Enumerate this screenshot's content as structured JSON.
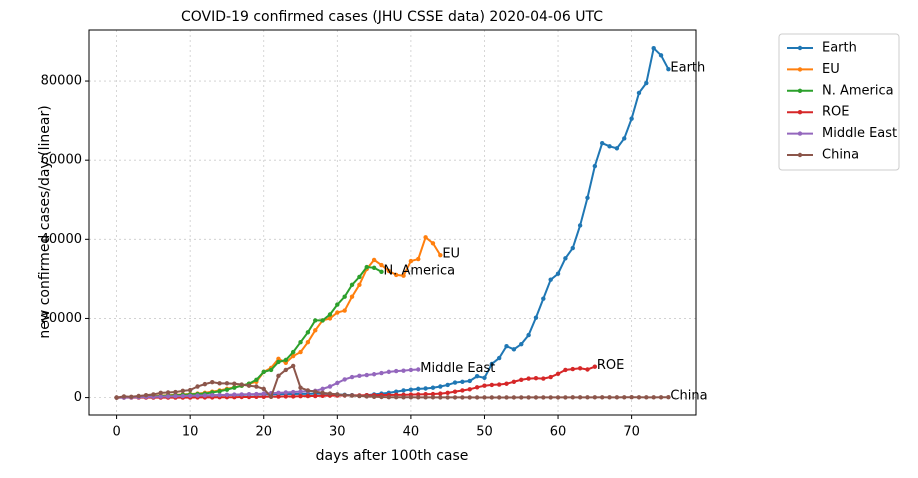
{
  "chart_data": {
    "type": "line",
    "title": "COVID-19 confirmed cases (JHU CSSE data) 2020-04-06 UTC",
    "x_label": "days after 100th case",
    "y_label": "new confirmed cases/day (linear)",
    "xlim": [
      -3.75,
      78.75
    ],
    "xticks": [
      0,
      10,
      20,
      30,
      40,
      50,
      60,
      70
    ],
    "ylim": [
      -4400,
      92900
    ],
    "yticks": [
      0,
      20000,
      40000,
      60000,
      80000
    ],
    "grid": true,
    "legend": "outside-upper-right",
    "series": [
      {
        "name": "Earth",
        "color": "#1f77b4",
        "x": [
          0,
          1,
          2,
          3,
          4,
          5,
          6,
          7,
          8,
          9,
          10,
          11,
          12,
          13,
          14,
          15,
          16,
          17,
          18,
          19,
          20,
          21,
          22,
          23,
          24,
          25,
          26,
          27,
          28,
          29,
          30,
          31,
          32,
          33,
          34,
          35,
          36,
          37,
          38,
          39,
          40,
          41,
          42,
          43,
          44,
          45,
          46,
          47,
          48,
          49,
          50,
          51,
          52,
          53,
          54,
          55,
          56,
          57,
          58,
          59,
          60,
          61,
          62,
          63,
          64,
          65,
          66,
          67,
          68,
          69,
          70,
          71,
          72,
          73,
          74,
          75
        ],
        "values": [
          0,
          50,
          100,
          150,
          200,
          250,
          300,
          350,
          400,
          450,
          500,
          500,
          550,
          600,
          600,
          650,
          700,
          700,
          750,
          800,
          800,
          850,
          850,
          900,
          900,
          950,
          950,
          1000,
          1000,
          900,
          800,
          700,
          600,
          500,
          600,
          800,
          1000,
          1200,
          1500,
          1800,
          2000,
          2200,
          2300,
          2500,
          2800,
          3200,
          3800,
          4000,
          4200,
          5400,
          5000,
          8500,
          10000,
          13000,
          12200,
          13500,
          15800,
          20200,
          25000,
          29800,
          31300,
          35200,
          37800,
          43500,
          50500,
          58500,
          64300,
          63500,
          63000,
          65500,
          70500,
          77000,
          79500,
          88300,
          86500,
          83000
        ]
      },
      {
        "name": "EU",
        "color": "#ff7f0e",
        "x": [
          0,
          1,
          2,
          3,
          4,
          5,
          6,
          7,
          8,
          9,
          10,
          11,
          12,
          13,
          14,
          15,
          16,
          17,
          18,
          19,
          20,
          21,
          22,
          23,
          24,
          25,
          26,
          27,
          28,
          29,
          30,
          31,
          32,
          33,
          34,
          35,
          36,
          37,
          38,
          39,
          40,
          41,
          42,
          43,
          44
        ],
        "values": [
          0,
          50,
          100,
          200,
          300,
          400,
          500,
          600,
          700,
          800,
          900,
          1000,
          1200,
          1500,
          1800,
          2200,
          2600,
          3000,
          3500,
          4000,
          6500,
          7500,
          9800,
          8800,
          10500,
          11500,
          14000,
          17000,
          19500,
          20000,
          21500,
          22000,
          25500,
          28500,
          32500,
          34800,
          33500,
          32000,
          31000,
          30800,
          34500,
          35000,
          40500,
          39000,
          36000
        ]
      },
      {
        "name": "N. America",
        "color": "#2ca02c",
        "x": [
          0,
          1,
          2,
          3,
          4,
          5,
          6,
          7,
          8,
          9,
          10,
          11,
          12,
          13,
          14,
          15,
          16,
          17,
          18,
          19,
          20,
          21,
          22,
          23,
          24,
          25,
          26,
          27,
          28,
          29,
          30,
          31,
          32,
          33,
          34,
          35,
          36
        ],
        "values": [
          0,
          50,
          100,
          150,
          200,
          300,
          400,
          500,
          600,
          700,
          800,
          900,
          1000,
          1300,
          1600,
          2000,
          2500,
          3000,
          3500,
          4500,
          6500,
          7000,
          9000,
          9500,
          11500,
          14000,
          16500,
          19500,
          19500,
          21000,
          23500,
          25500,
          28500,
          30500,
          33000,
          32800,
          31800
        ]
      },
      {
        "name": "ROE",
        "color": "#d62728",
        "x": [
          0,
          1,
          2,
          3,
          4,
          5,
          6,
          7,
          8,
          9,
          10,
          11,
          12,
          13,
          14,
          15,
          16,
          17,
          18,
          19,
          20,
          21,
          22,
          23,
          24,
          25,
          26,
          27,
          28,
          29,
          30,
          31,
          32,
          33,
          34,
          35,
          36,
          37,
          38,
          39,
          40,
          41,
          42,
          43,
          44,
          45,
          46,
          47,
          48,
          49,
          50,
          51,
          52,
          53,
          54,
          55,
          56,
          57,
          58,
          59,
          60,
          61,
          62,
          63,
          64,
          65
        ],
        "values": [
          0,
          0,
          0,
          0,
          0,
          0,
          0,
          0,
          0,
          0,
          0,
          50,
          50,
          50,
          100,
          100,
          100,
          150,
          150,
          200,
          200,
          250,
          250,
          300,
          300,
          350,
          400,
          400,
          450,
          500,
          500,
          550,
          550,
          550,
          600,
          600,
          650,
          650,
          700,
          700,
          750,
          800,
          850,
          900,
          1000,
          1200,
          1500,
          1800,
          2100,
          2600,
          3000,
          3200,
          3300,
          3500,
          4000,
          4500,
          4800,
          4900,
          4800,
          5200,
          6000,
          7000,
          7200,
          7400,
          7100,
          7800
        ]
      },
      {
        "name": "Middle East",
        "color": "#9467bd",
        "x": [
          0,
          1,
          2,
          3,
          4,
          5,
          6,
          7,
          8,
          9,
          10,
          11,
          12,
          13,
          14,
          15,
          16,
          17,
          18,
          19,
          20,
          21,
          22,
          23,
          24,
          25,
          26,
          27,
          28,
          29,
          30,
          31,
          32,
          33,
          34,
          35,
          36,
          37,
          38,
          39,
          40,
          41
        ],
        "values": [
          0,
          0,
          50,
          100,
          150,
          200,
          250,
          300,
          350,
          400,
          450,
          500,
          550,
          600,
          650,
          700,
          750,
          800,
          850,
          900,
          1000,
          1100,
          1200,
          1300,
          1400,
          1500,
          1600,
          1700,
          2200,
          2800,
          3700,
          4600,
          5200,
          5500,
          5700,
          5900,
          6200,
          6500,
          6700,
          6800,
          7000,
          7100
        ]
      },
      {
        "name": "China",
        "color": "#8c564b",
        "x": [
          0,
          1,
          2,
          3,
          4,
          5,
          6,
          7,
          8,
          9,
          10,
          11,
          12,
          13,
          14,
          15,
          16,
          17,
          18,
          19,
          20,
          21,
          22,
          23,
          24,
          25,
          26,
          27,
          28,
          29,
          30,
          31,
          32,
          33,
          34,
          35,
          36,
          37,
          38,
          39,
          40,
          41,
          42,
          43,
          44,
          45,
          46,
          47,
          48,
          49,
          50,
          51,
          52,
          53,
          54,
          55,
          56,
          57,
          58,
          59,
          60,
          61,
          62,
          63,
          64,
          65,
          66,
          67,
          68,
          69,
          70,
          71,
          72,
          73,
          74,
          75
        ],
        "values": [
          0,
          300,
          200,
          400,
          600,
          800,
          1200,
          1300,
          1400,
          1700,
          1900,
          2800,
          3400,
          3900,
          3600,
          3600,
          3500,
          3300,
          3000,
          2800,
          2200,
          200,
          5500,
          7000,
          8000,
          2500,
          1800,
          1500,
          1200,
          1000,
          800,
          600,
          500,
          400,
          300,
          200,
          150,
          100,
          100,
          80,
          80,
          70,
          60,
          60,
          50,
          50,
          40,
          40,
          40,
          30,
          30,
          30,
          30,
          30,
          30,
          40,
          40,
          50,
          50,
          40,
          40,
          50,
          60,
          60,
          70,
          70,
          80,
          70,
          60,
          80,
          90,
          80,
          60,
          70,
          80,
          90
        ]
      }
    ]
  }
}
